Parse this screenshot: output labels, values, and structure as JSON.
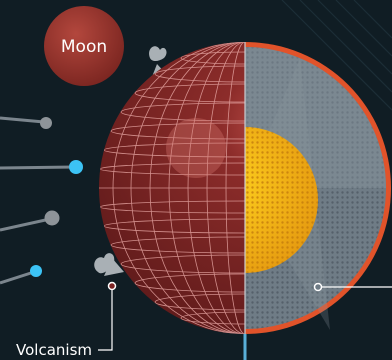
{
  "labels": {
    "moon": "Moon",
    "volcanism": "Volcanism"
  },
  "colors": {
    "background": "#101d24",
    "moon": "#8f302a",
    "planet_surface": "#7c2424",
    "mantle": "#6f7c86",
    "core": "#f3b11a",
    "crust_rim": "#e1532a",
    "accent_cyan": "#3cc3f5",
    "rock_grey": "#8e9499"
  }
}
